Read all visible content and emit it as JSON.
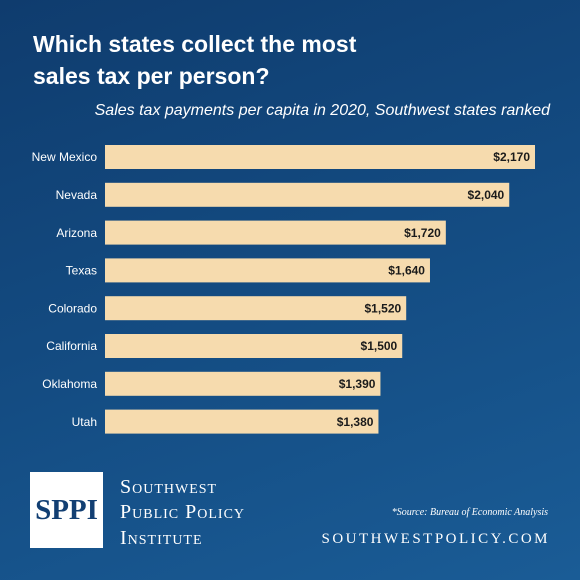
{
  "chart_data": {
    "type": "bar",
    "orientation": "horizontal",
    "title": "Which states collect the most sales tax per person?",
    "subtitle": "Sales tax payments per capita in 2020, Southwest states ranked",
    "categories": [
      "New Mexico",
      "Nevada",
      "Arizona",
      "Texas",
      "Colorado",
      "California",
      "Oklahoma",
      "Utah"
    ],
    "values": [
      2170,
      2040,
      1720,
      1640,
      1520,
      1500,
      1390,
      1380
    ],
    "value_labels": [
      "$2,170",
      "$2,040",
      "$1,720",
      "$1,640",
      "$1,520",
      "$1,500",
      "$1,390",
      "$1,380"
    ],
    "color": "#f6dbae"
  },
  "footer": {
    "logo": "SPPI",
    "organization": [
      "Southwest",
      "Public Policy",
      "Institute"
    ],
    "source": "*Source: Bureau of Economic Analysis",
    "url": "SOUTHWESTPOLICY.COM"
  }
}
